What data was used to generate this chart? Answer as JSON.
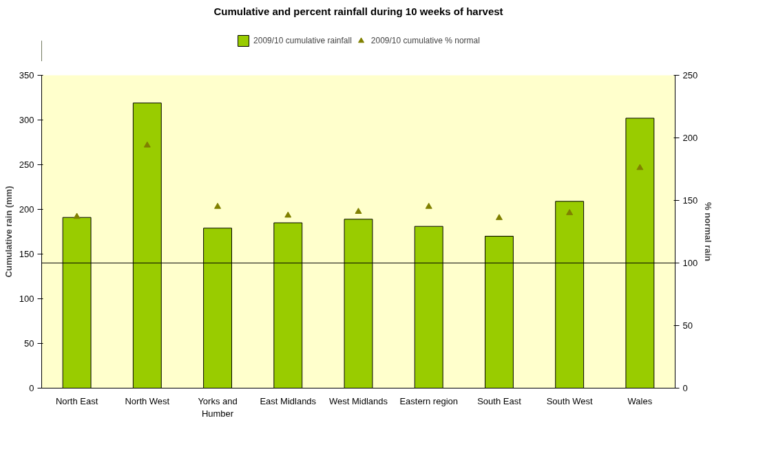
{
  "chart_data": {
    "type": "bar",
    "title": "Cumulative and percent rainfall during 10 weeks of harvest",
    "categories": [
      "North East",
      "North West",
      "Yorks and Humber",
      "East Midlands",
      "West Midlands",
      "Eastern region",
      "South East",
      "South West",
      "Wales"
    ],
    "series": [
      {
        "name": "2009/10 cumulative rainfall",
        "color": "#99cc00",
        "values": [
          191,
          319,
          179,
          185,
          189,
          181,
          170,
          209,
          302
        ]
      },
      {
        "name": "2009/10 cumulative % normal",
        "type": "scatter",
        "axis": "y2",
        "marker": "triangle",
        "color": "#808000",
        "values": [
          137,
          194,
          145,
          138,
          141,
          145,
          136,
          140,
          176
        ]
      }
    ],
    "ylabel": "Cumulative rain (mm)",
    "y2label": "% normal rain",
    "ylim": [
      0,
      350
    ],
    "yticks": [
      0,
      50,
      100,
      150,
      200,
      250,
      300,
      350
    ],
    "y2lim": [
      0,
      250
    ],
    "y2ticks": [
      0,
      50,
      100,
      150,
      200,
      250
    ],
    "ref_lines": [
      {
        "axis": "y2",
        "value": 100,
        "color": "#000000"
      }
    ],
    "grid": false,
    "legend": "top"
  }
}
